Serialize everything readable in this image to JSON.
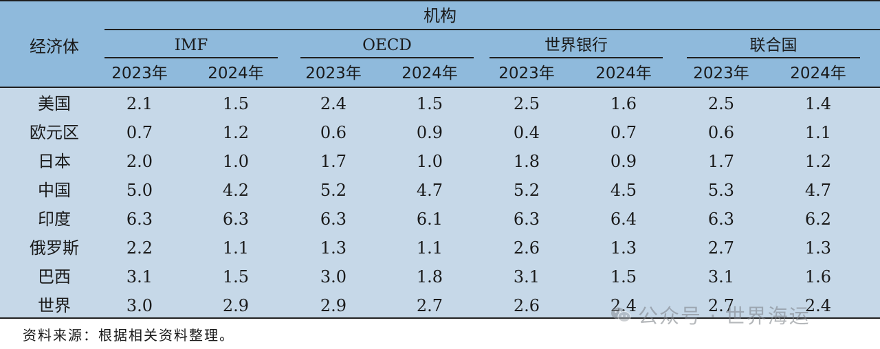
{
  "table": {
    "institution_header": "机构",
    "economy_header": "经济体",
    "institutions": [
      "IMF",
      "OECD",
      "世界银行",
      "联合国"
    ],
    "years": [
      "2023年",
      "2024年"
    ],
    "rows": [
      {
        "economy": "美国",
        "values": [
          "2.1",
          "1.5",
          "2.4",
          "1.5",
          "2.5",
          "1.6",
          "2.5",
          "1.4"
        ]
      },
      {
        "economy": "欧元区",
        "values": [
          "0.7",
          "1.2",
          "0.6",
          "0.9",
          "0.4",
          "0.7",
          "0.6",
          "1.1"
        ]
      },
      {
        "economy": "日本",
        "values": [
          "2.0",
          "1.0",
          "1.7",
          "1.0",
          "1.8",
          "0.9",
          "1.7",
          "1.2"
        ]
      },
      {
        "economy": "中国",
        "values": [
          "5.0",
          "4.2",
          "5.2",
          "4.7",
          "5.2",
          "4.5",
          "5.3",
          "4.7"
        ]
      },
      {
        "economy": "印度",
        "values": [
          "6.3",
          "6.3",
          "6.3",
          "6.1",
          "6.3",
          "6.4",
          "6.3",
          "6.2"
        ]
      },
      {
        "economy": "俄罗斯",
        "values": [
          "2.2",
          "1.1",
          "1.3",
          "1.1",
          "2.6",
          "1.3",
          "2.7",
          "1.3"
        ]
      },
      {
        "economy": "巴西",
        "values": [
          "3.1",
          "1.5",
          "3.0",
          "1.8",
          "3.1",
          "1.5",
          "3.1",
          "1.6"
        ]
      },
      {
        "economy": "世界",
        "values": [
          "3.0",
          "2.9",
          "2.9",
          "2.7",
          "2.6",
          "2.4",
          "2.7",
          "2.4"
        ]
      }
    ],
    "colors": {
      "header_bg": "#8fbadc",
      "body_bg": "#c6d8e8",
      "rule": "#1f1f1f"
    }
  },
  "footer": {
    "source_note": "资料来源：根据相关资料整理。"
  },
  "watermark": {
    "icon": "wechat-icon",
    "text": "公众号 · 世界海运"
  }
}
